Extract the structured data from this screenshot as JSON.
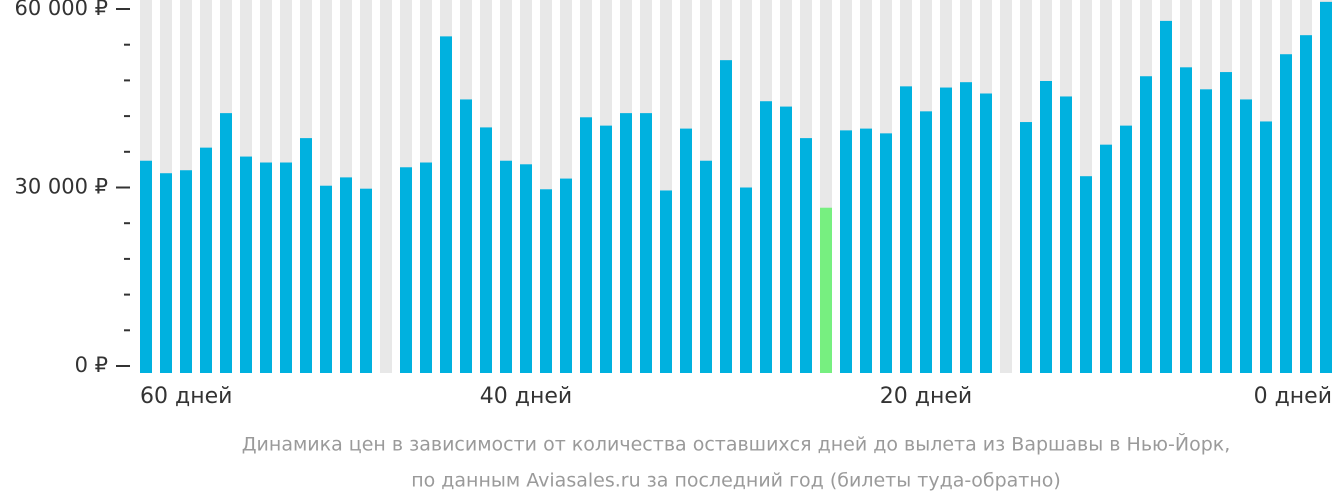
{
  "chart_data": {
    "type": "bar",
    "categories": [
      "60 дней",
      null,
      null,
      null,
      null,
      null,
      null,
      null,
      null,
      null,
      null,
      null,
      null,
      null,
      null,
      null,
      null,
      null,
      null,
      "40 дней",
      null,
      null,
      null,
      null,
      null,
      null,
      null,
      null,
      null,
      null,
      null,
      null,
      null,
      null,
      null,
      null,
      null,
      null,
      null,
      "20 дней",
      null,
      null,
      null,
      null,
      null,
      null,
      null,
      null,
      null,
      null,
      null,
      null,
      null,
      null,
      null,
      null,
      null,
      null,
      null,
      "0 дней"
    ],
    "values": [
      34500,
      32400,
      32900,
      36700,
      42500,
      35200,
      34200,
      34200,
      38300,
      30300,
      31700,
      29800,
      null,
      33400,
      34200,
      55400,
      44800,
      40100,
      34500,
      33900,
      29700,
      31500,
      41800,
      40400,
      42500,
      42500,
      29500,
      39900,
      34500,
      51400,
      30000,
      44500,
      43600,
      38300,
      26600,
      39600,
      39900,
      39100,
      47000,
      42800,
      46800,
      47700,
      45800,
      null,
      41000,
      47900,
      45300,
      31900,
      37200,
      40400,
      48700,
      58000,
      50200,
      46500,
      49400,
      44800,
      41100,
      52400,
      55600,
      61200
    ],
    "color": "#00b1df",
    "highlight": {
      "index": 34,
      "color": "#77ef80"
    },
    "ylim": [
      0,
      60000
    ],
    "yticks": [
      {
        "value": 0,
        "label": "0 ₽"
      },
      {
        "value": 30000,
        "label": "30 000 ₽"
      },
      {
        "value": 60000,
        "label": "60 000 ₽"
      }
    ],
    "minor_yticks": [
      6000,
      12000,
      18000,
      24000,
      36000,
      42000,
      48000,
      54000
    ],
    "caption": [
      "Динамика цен в зависимости от количества оставшихся дней до вылета из Варшавы в Нью-Йорк,",
      "по данным Aviasales.ru за последний год (билеты туда-обратно)"
    ]
  }
}
